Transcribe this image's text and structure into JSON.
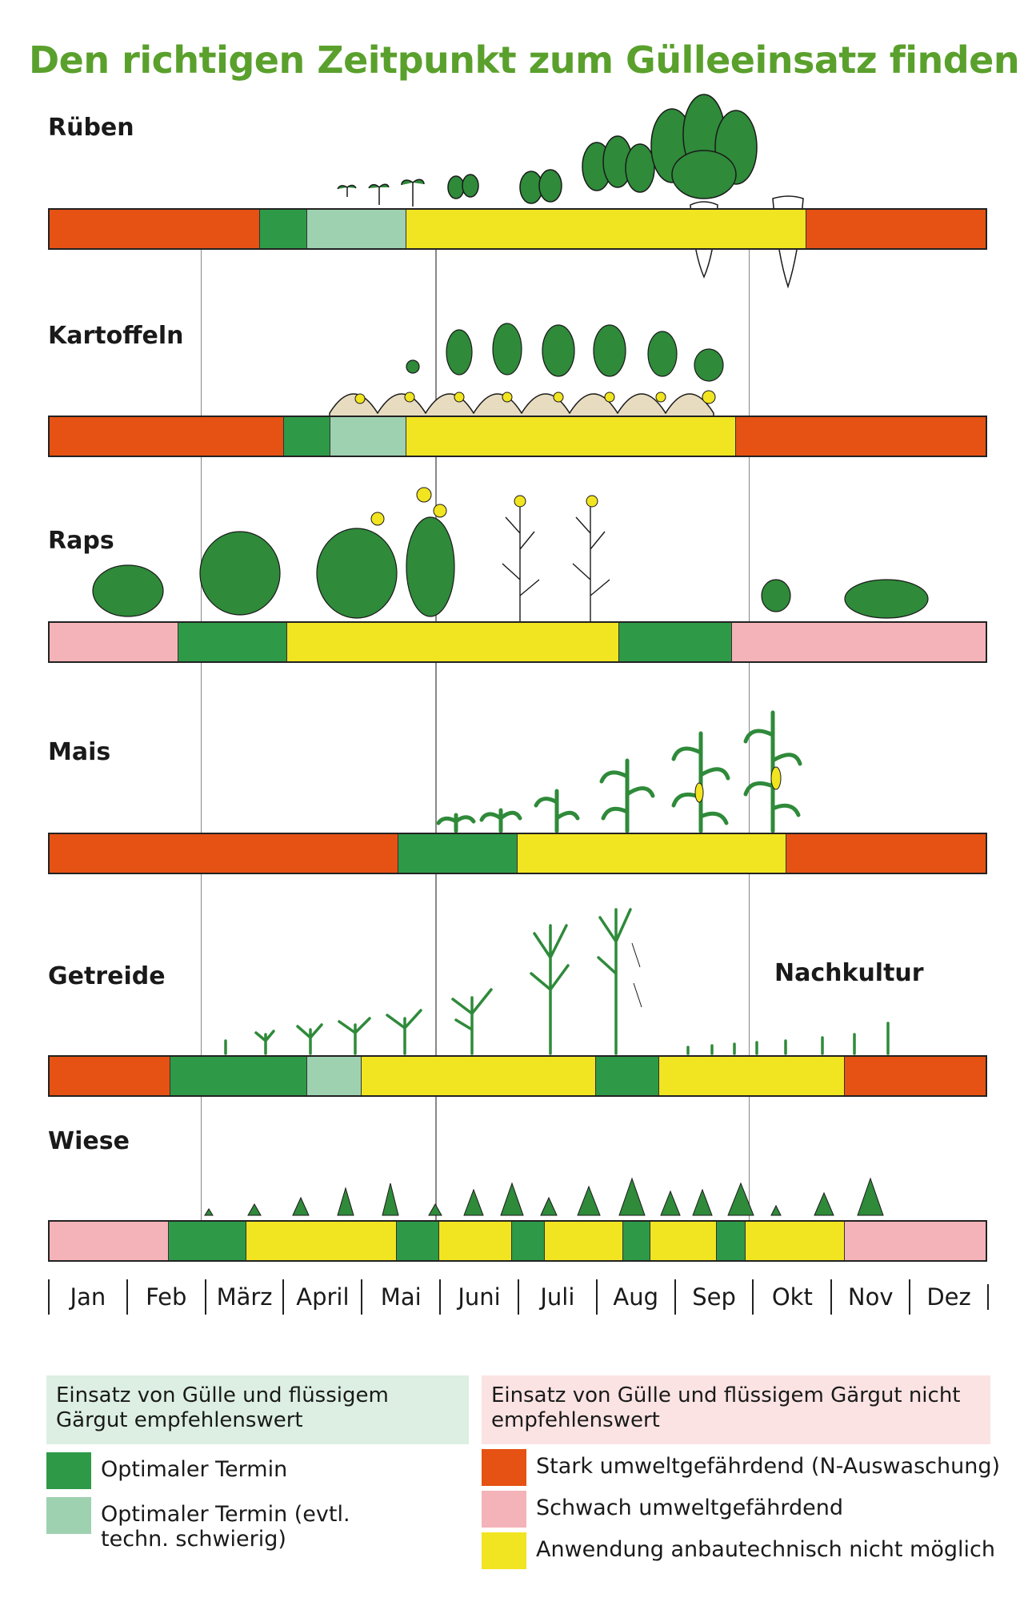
{
  "title": "Den richtigen Zeitpunkt zum Gülleeinsatz finden",
  "colors": {
    "optimal": "#2e9a48",
    "optimal_difficult": "#9ed1b0",
    "strong": "#e55214",
    "weak": "#f4b3b8",
    "impossible": "#f1e421",
    "legend_good_bg": "#dcefe2",
    "legend_bad_bg": "#fbe3e3",
    "title": "#5aa02c"
  },
  "months": [
    "Jan",
    "Feb",
    "März",
    "April",
    "Mai",
    "Juni",
    "Juli",
    "Aug",
    "Sep",
    "Okt",
    "Nov",
    "Dez"
  ],
  "crops": [
    {
      "name": "Rüben",
      "segments": [
        {
          "type": "strong",
          "start": 0,
          "end": 2.7
        },
        {
          "type": "optimal",
          "start": 2.7,
          "end": 3.3
        },
        {
          "type": "optimal_difficult",
          "start": 3.3,
          "end": 4.57
        },
        {
          "type": "impossible",
          "start": 4.57,
          "end": 9.7
        },
        {
          "type": "strong",
          "start": 9.7,
          "end": 12
        }
      ]
    },
    {
      "name": "Kartoffeln",
      "segments": [
        {
          "type": "strong",
          "start": 0,
          "end": 3.0
        },
        {
          "type": "optimal",
          "start": 3.0,
          "end": 3.6
        },
        {
          "type": "optimal_difficult",
          "start": 3.6,
          "end": 4.57
        },
        {
          "type": "impossible",
          "start": 4.57,
          "end": 8.8
        },
        {
          "type": "strong",
          "start": 8.8,
          "end": 12
        }
      ]
    },
    {
      "name": "Raps",
      "segments": [
        {
          "type": "weak",
          "start": 0,
          "end": 1.65
        },
        {
          "type": "optimal",
          "start": 1.65,
          "end": 3.05
        },
        {
          "type": "impossible",
          "start": 3.05,
          "end": 7.3
        },
        {
          "type": "optimal",
          "start": 7.3,
          "end": 8.75
        },
        {
          "type": "weak",
          "start": 8.75,
          "end": 12
        }
      ]
    },
    {
      "name": "Mais",
      "segments": [
        {
          "type": "strong",
          "start": 0,
          "end": 4.47
        },
        {
          "type": "optimal",
          "start": 4.47,
          "end": 6.0
        },
        {
          "type": "impossible",
          "start": 6.0,
          "end": 9.45
        },
        {
          "type": "strong",
          "start": 9.45,
          "end": 12
        }
      ]
    },
    {
      "name": "Getreide",
      "extra_label": "Nachkultur",
      "segments": [
        {
          "type": "strong",
          "start": 0,
          "end": 1.55
        },
        {
          "type": "optimal",
          "start": 1.55,
          "end": 3.3
        },
        {
          "type": "optimal_difficult",
          "start": 3.3,
          "end": 4.0
        },
        {
          "type": "impossible",
          "start": 4.0,
          "end": 7.0
        },
        {
          "type": "optimal",
          "start": 7.0,
          "end": 7.82
        },
        {
          "type": "impossible",
          "start": 7.82,
          "end": 10.2
        },
        {
          "type": "strong",
          "start": 10.2,
          "end": 12
        }
      ]
    },
    {
      "name": "Wiese",
      "segments": [
        {
          "type": "weak",
          "start": 0,
          "end": 1.53
        },
        {
          "type": "optimal",
          "start": 1.53,
          "end": 2.52
        },
        {
          "type": "impossible",
          "start": 2.52,
          "end": 4.45
        },
        {
          "type": "optimal",
          "start": 4.45,
          "end": 5.0
        },
        {
          "type": "impossible",
          "start": 5.0,
          "end": 5.93
        },
        {
          "type": "optimal",
          "start": 5.93,
          "end": 6.35
        },
        {
          "type": "impossible",
          "start": 6.35,
          "end": 7.35
        },
        {
          "type": "optimal",
          "start": 7.35,
          "end": 7.7
        },
        {
          "type": "impossible",
          "start": 7.7,
          "end": 8.55
        },
        {
          "type": "optimal",
          "start": 8.55,
          "end": 8.92
        },
        {
          "type": "impossible",
          "start": 8.92,
          "end": 10.2
        },
        {
          "type": "weak",
          "start": 10.2,
          "end": 12
        }
      ]
    }
  ],
  "legend": {
    "good_header": "Einsatz von Gülle und flüssigem Gärgut empfehlenswert",
    "bad_header": "Einsatz von Gülle und flüssigem Gärgut nicht empfehlenswert",
    "optimal": "Optimaler Termin",
    "optimal_difficult": "Optimaler Termin (evtl. techn. schwierig)",
    "strong": "Stark umweltgefährdend (N-Auswaschung)",
    "weak": "Schwach umweltgefährdend",
    "impossible": "Anwendung anbautechnisch nicht möglich"
  }
}
